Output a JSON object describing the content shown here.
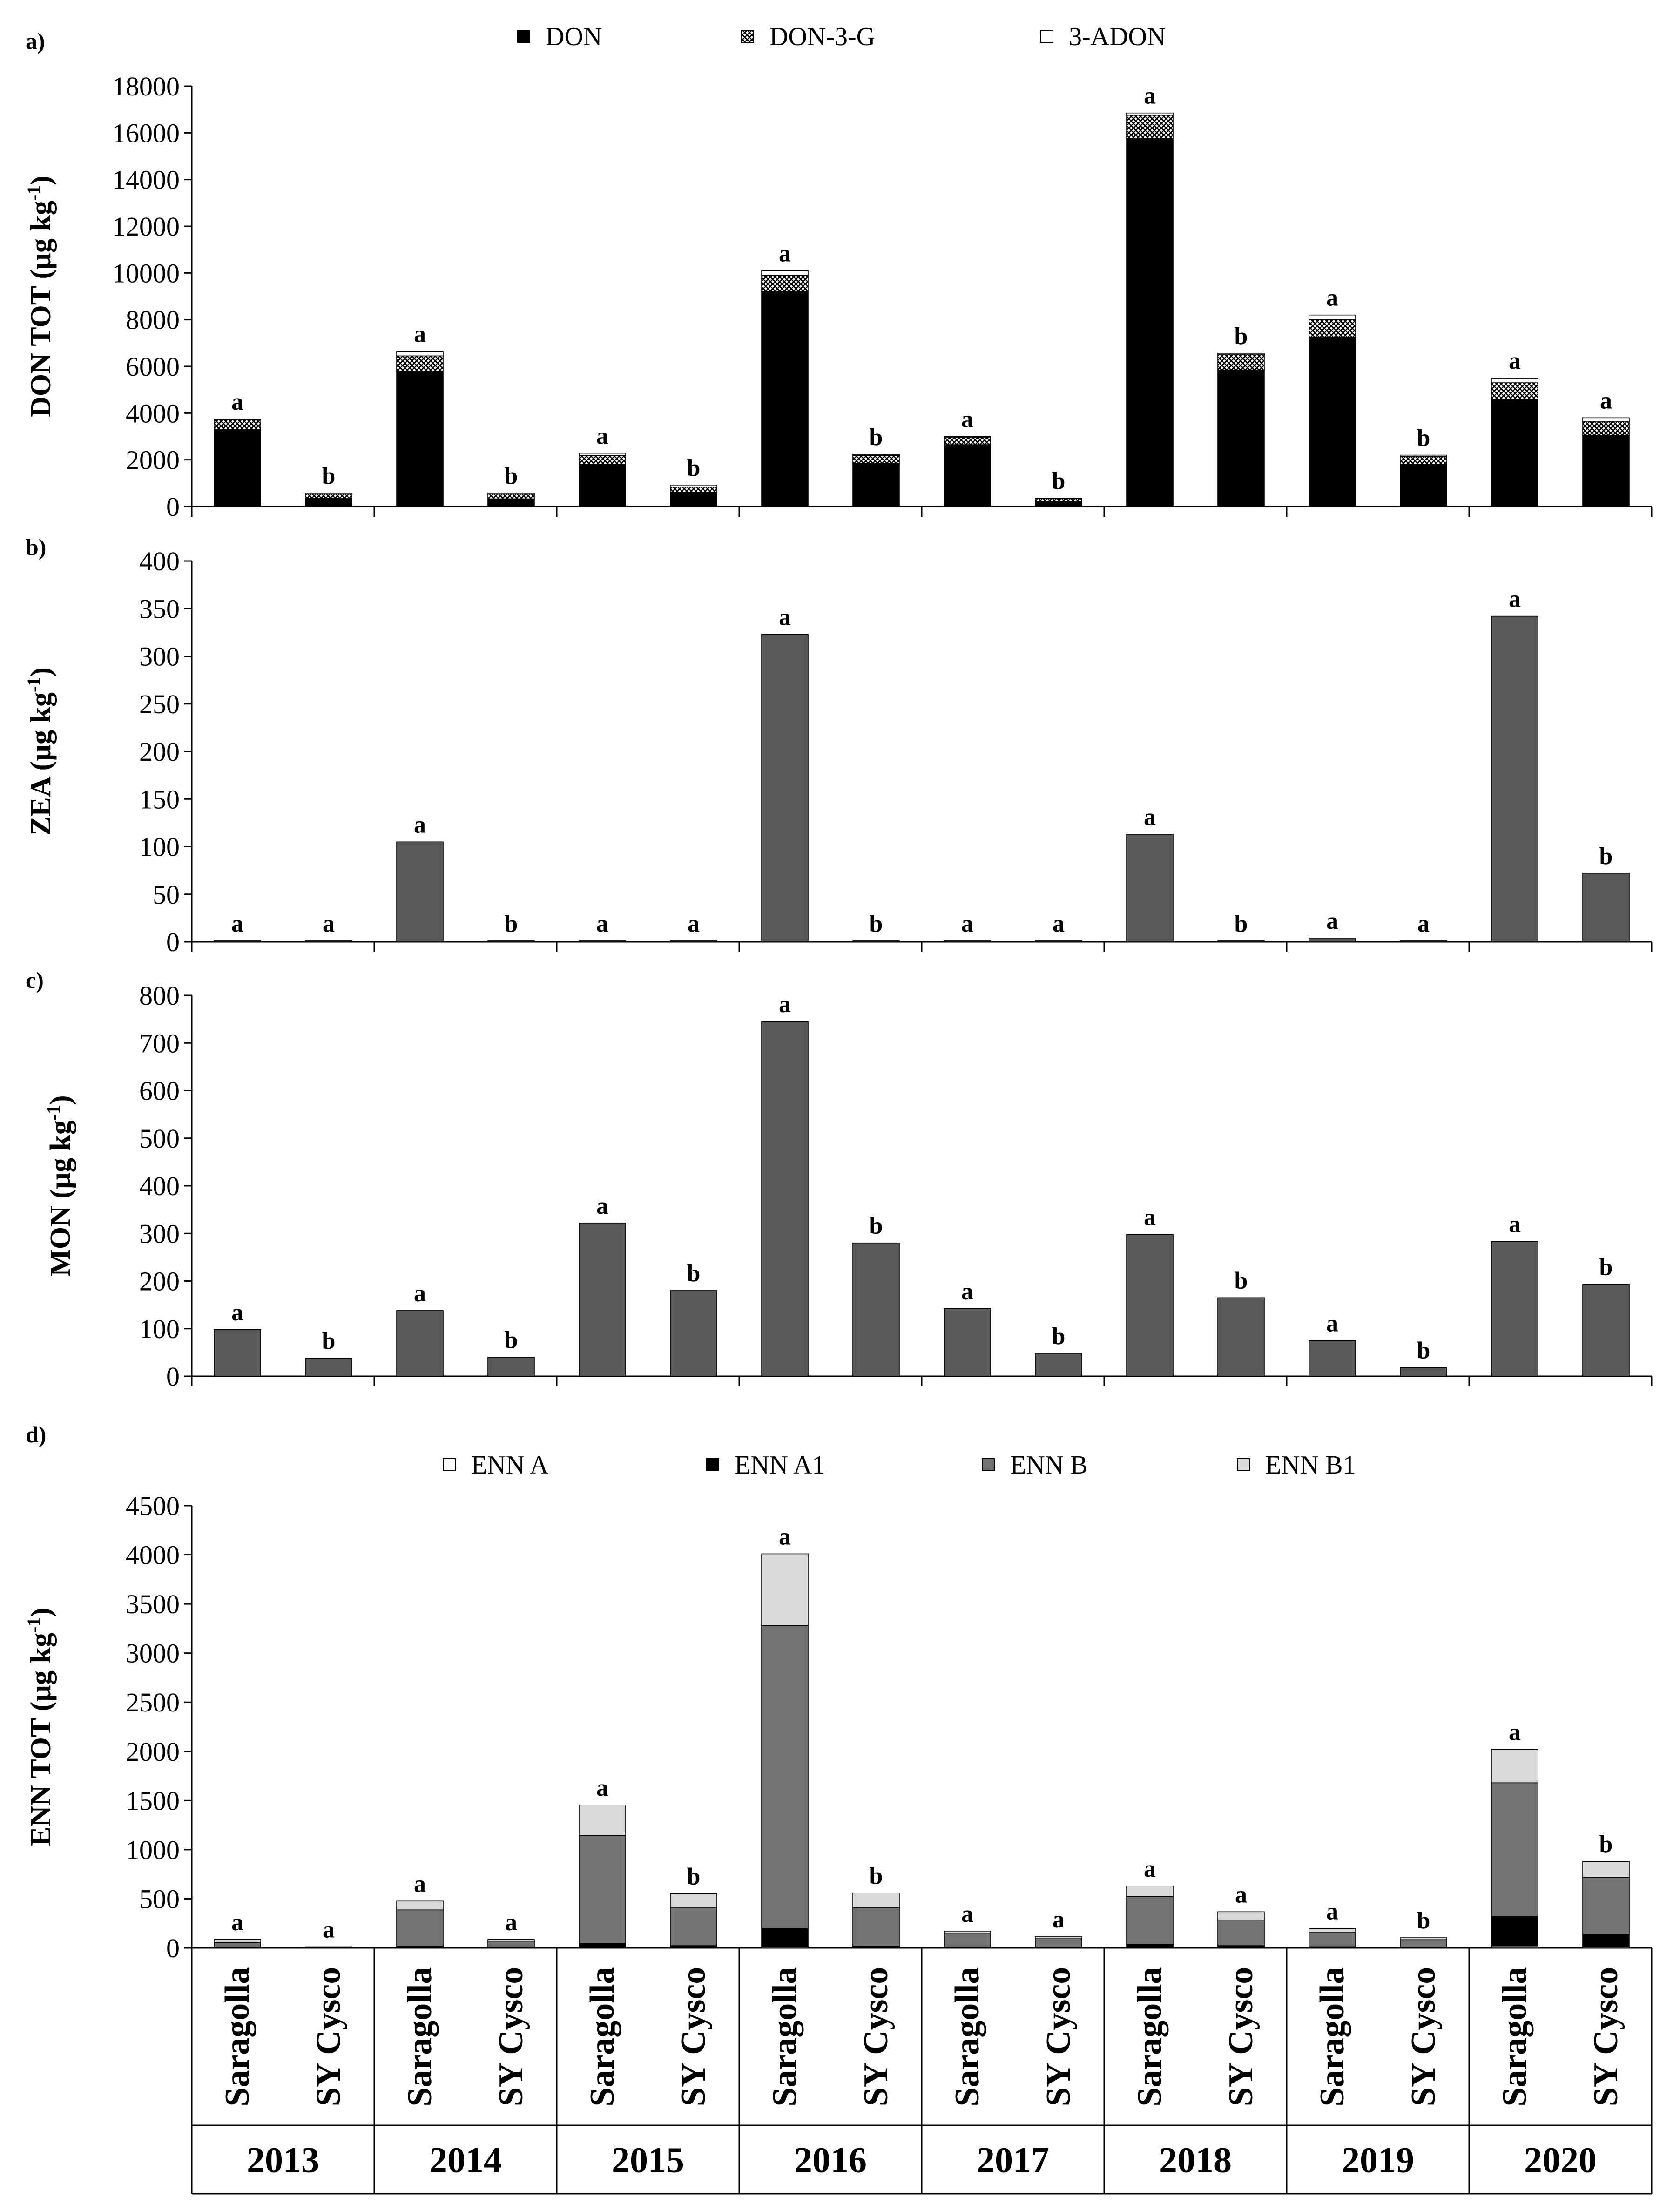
{
  "chart_data": {
    "type": "bar",
    "years": [
      "2013",
      "2014",
      "2015",
      "2016",
      "2017",
      "2018",
      "2019",
      "2020"
    ],
    "cultivars": [
      "Saragolla",
      "SY Cysco"
    ],
    "panels": [
      {
        "id": "a",
        "label": "a)",
        "ylabel": "DON TOT (µg kg",
        "ylabel_sup": "-1",
        "ylabel_end": ")",
        "ylim": [
          0,
          18000
        ],
        "yticks": [
          0,
          2000,
          4000,
          6000,
          8000,
          10000,
          12000,
          14000,
          16000,
          18000
        ],
        "stacked": true,
        "series": [
          {
            "name": "DON",
            "fill": "#000000",
            "values": [
              3300,
              350,
              5800,
              330,
              1800,
              620,
              9200,
              1850,
              2650,
              220,
              15750,
              5850,
              7250,
              1800,
              4600,
              3050
            ]
          },
          {
            "name": "DON-3-G",
            "fill": "pattern",
            "values": [
              420,
              190,
              650,
              210,
              380,
              220,
              700,
              330,
              320,
              120,
              1000,
              650,
              750,
              350,
              700,
              600
            ]
          },
          {
            "name": "3-ADON",
            "fill": "#ffffff",
            "values": [
              30,
              40,
              200,
              40,
              100,
              80,
              200,
              50,
              30,
              20,
              100,
              60,
              200,
              50,
              200,
              150
            ]
          }
        ],
        "significance": [
          "a",
          "b",
          "a",
          "b",
          "a",
          "b",
          "a",
          "b",
          "a",
          "b",
          "a",
          "b",
          "a",
          "b",
          "a",
          "a"
        ]
      },
      {
        "id": "b",
        "label": "b)",
        "ylabel": "ZEA (µg kg",
        "ylabel_sup": "-1",
        "ylabel_end": ")",
        "ylim": [
          0,
          400
        ],
        "yticks": [
          0,
          50,
          100,
          150,
          200,
          250,
          300,
          350,
          400
        ],
        "stacked": false,
        "series": [
          {
            "name": "ZEA",
            "fill": "#595959",
            "values": [
              1,
              1,
              105,
              1,
              1,
              1,
              323,
              1,
              1,
              1,
              113,
              1,
              4,
              1,
              342,
              72
            ]
          }
        ],
        "significance": [
          "a",
          "a",
          "a",
          "b",
          "a",
          "a",
          "a",
          "b",
          "a",
          "a",
          "a",
          "b",
          "a",
          "a",
          "a",
          "b"
        ]
      },
      {
        "id": "c",
        "label": "c)",
        "ylabel": "MON (µg kg",
        "ylabel_sup": "-1",
        "ylabel_end": ")",
        "ylim": [
          0,
          800
        ],
        "yticks": [
          0,
          100,
          200,
          300,
          400,
          500,
          600,
          700,
          800
        ],
        "stacked": false,
        "series": [
          {
            "name": "MON",
            "fill": "#595959",
            "values": [
              98,
              38,
              138,
              40,
              322,
              180,
              745,
              280,
              142,
              48,
              298,
              165,
              75,
              18,
              283,
              193
            ]
          }
        ],
        "significance": [
          "a",
          "b",
          "a",
          "b",
          "a",
          "b",
          "a",
          "b",
          "a",
          "b",
          "a",
          "b",
          "a",
          "b",
          "a",
          "b"
        ]
      },
      {
        "id": "d",
        "label": "d)",
        "ylabel": "ENN TOT (µg kg",
        "ylabel_sup": "-1",
        "ylabel_end": ")",
        "ylim": [
          0,
          4500
        ],
        "yticks": [
          0,
          500,
          1000,
          1500,
          2000,
          2500,
          3000,
          3500,
          4000,
          4500
        ],
        "stacked": true,
        "series": [
          {
            "name": "ENN A",
            "fill": "#ffffff",
            "values": [
              1,
              1,
              2,
              1,
              5,
              3,
              10,
              3,
              1,
              1,
              5,
              3,
              2,
              1,
              20,
              10
            ]
          },
          {
            "name": "ENN A1",
            "fill": "#000000",
            "values": [
              5,
              2,
              15,
              5,
              40,
              20,
              190,
              15,
              5,
              3,
              30,
              20,
              10,
              3,
              300,
              130
            ]
          },
          {
            "name": "ENN B",
            "fill": "#737373",
            "values": [
              50,
              7,
              370,
              55,
              1100,
              390,
              3080,
              390,
              140,
              90,
              490,
              260,
              150,
              80,
              1360,
              580
            ]
          },
          {
            "name": "ENN B1",
            "fill": "#d9d9d9",
            "values": [
              30,
              2,
              90,
              25,
              310,
              140,
              730,
              150,
              25,
              20,
              105,
              85,
              35,
              20,
              340,
              160
            ]
          }
        ],
        "significance": [
          "a",
          "a",
          "a",
          "a",
          "a",
          "b",
          "a",
          "b",
          "a",
          "a",
          "a",
          "a",
          "a",
          "b",
          "a",
          "b"
        ]
      }
    ]
  }
}
